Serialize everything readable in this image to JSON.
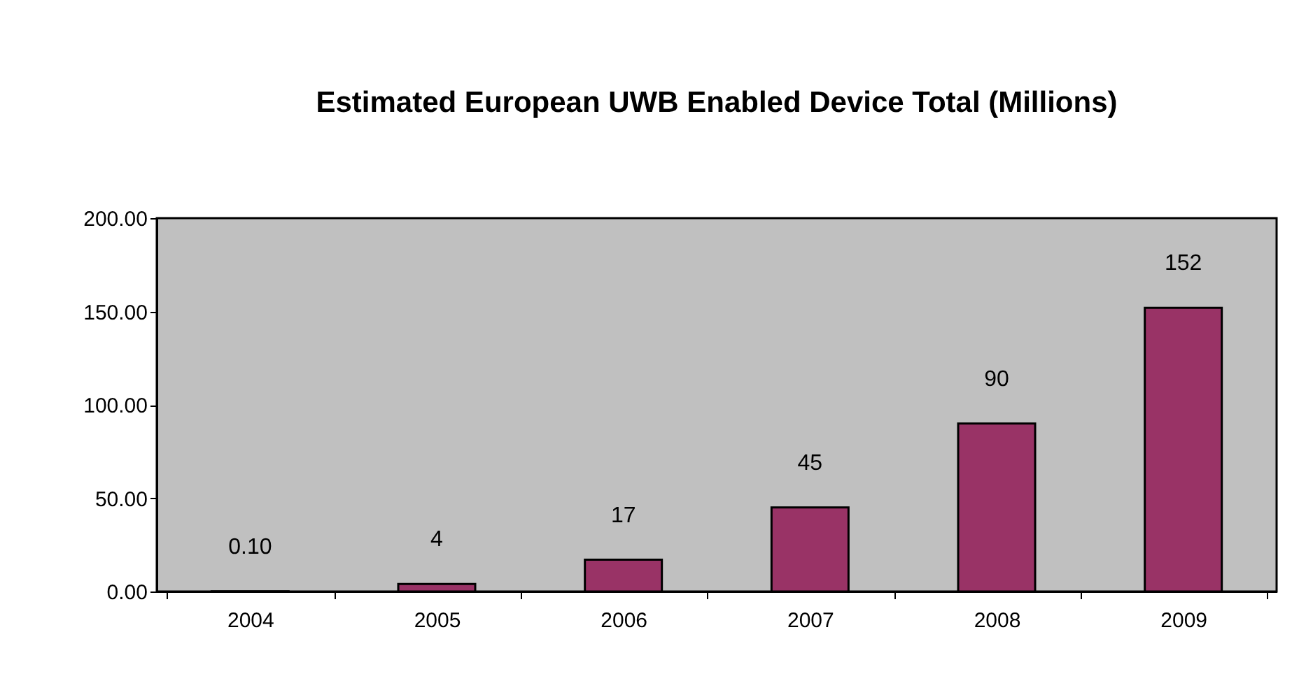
{
  "chart_data": {
    "type": "bar",
    "title": "Estimated European UWB Enabled Device Total (Millions)",
    "categories": [
      "2004",
      "2005",
      "2006",
      "2007",
      "2008",
      "2009"
    ],
    "values": [
      0.1,
      4,
      17,
      45,
      90,
      152
    ],
    "value_labels": [
      "0.10",
      "4",
      "17",
      "45",
      "90",
      "152"
    ],
    "color": "#993366",
    "ylim": [
      0,
      200
    ],
    "yticks": [
      {
        "value": 0,
        "label": "0.00"
      },
      {
        "value": 50,
        "label": "50.00"
      },
      {
        "value": 100,
        "label": "100.00"
      },
      {
        "value": 150,
        "label": "150.00"
      },
      {
        "value": 200,
        "label": "200.00"
      }
    ],
    "grid": false
  }
}
